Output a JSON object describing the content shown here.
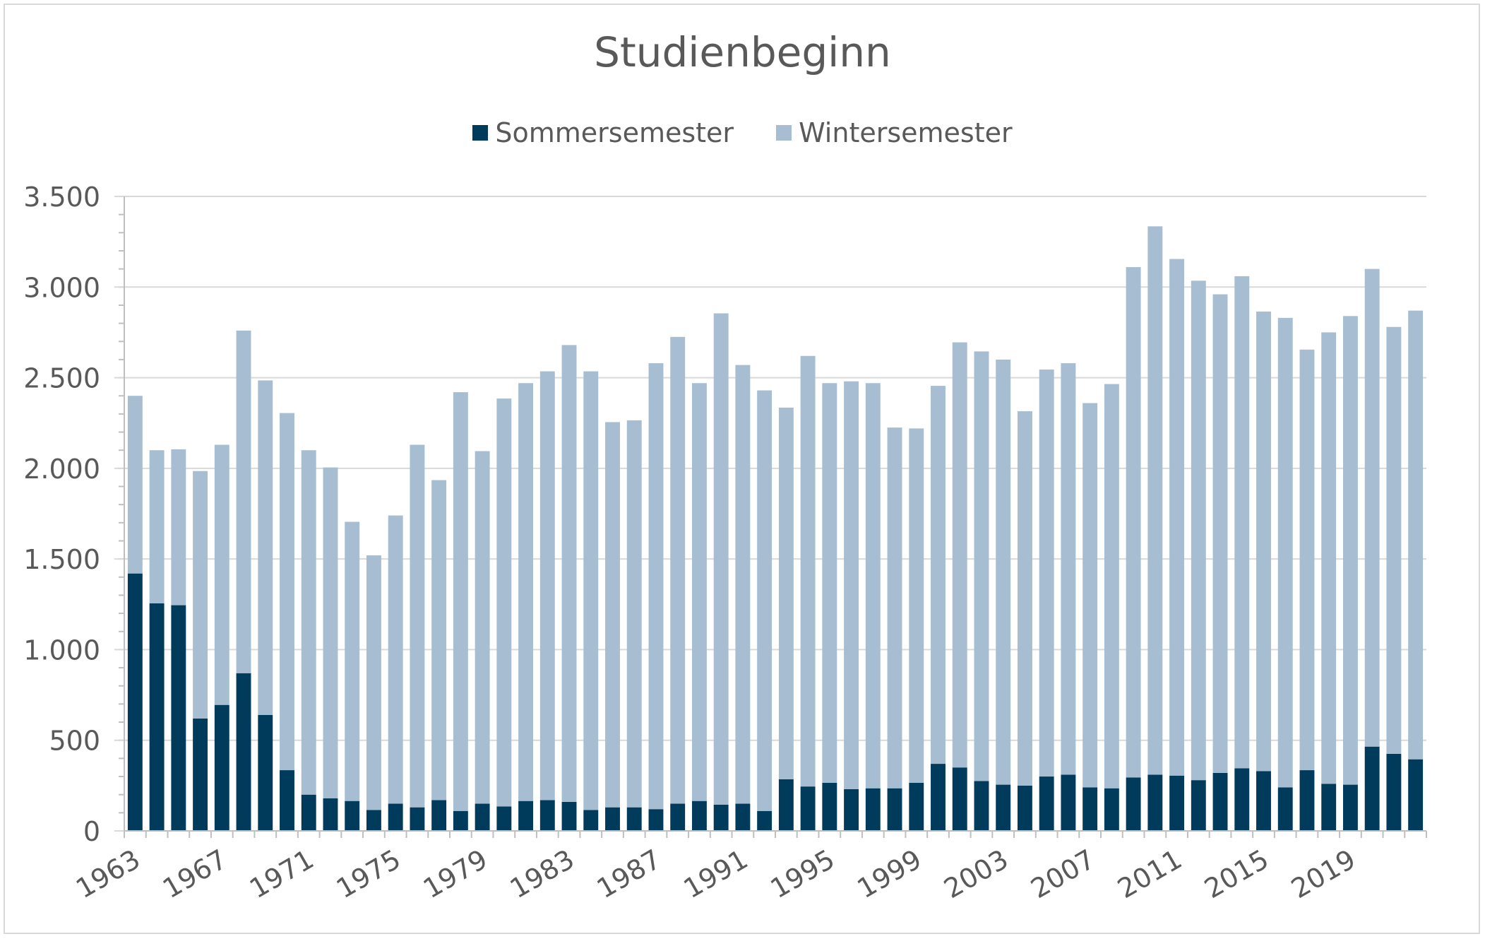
{
  "chart_data": {
    "type": "bar",
    "stacked": true,
    "title": "Studienbeginn",
    "xlabel": "",
    "ylabel": "",
    "ylim": [
      0,
      3500
    ],
    "yticks": [
      0,
      500,
      1000,
      1500,
      2000,
      2500,
      3000,
      3500
    ],
    "ytick_labels": [
      "0",
      "500",
      "1.000",
      "1.500",
      "2.000",
      "2.500",
      "3.000",
      "3.500"
    ],
    "grid": true,
    "legend_position": "top",
    "categories": [
      1963,
      1964,
      1965,
      1966,
      1967,
      1968,
      1969,
      1970,
      1971,
      1972,
      1973,
      1974,
      1975,
      1976,
      1977,
      1978,
      1979,
      1980,
      1981,
      1982,
      1983,
      1984,
      1985,
      1986,
      1987,
      1988,
      1989,
      1990,
      1991,
      1992,
      1993,
      1994,
      1995,
      1996,
      1997,
      1998,
      1999,
      2000,
      2001,
      2002,
      2003,
      2004,
      2005,
      2006,
      2007,
      2008,
      2009,
      2010,
      2011,
      2012,
      2013,
      2014,
      2015,
      2016,
      2017,
      2018,
      2019,
      2020,
      2021,
      2022
    ],
    "xtick_labels": [
      "1963",
      "1967",
      "1971",
      "1975",
      "1979",
      "1983",
      "1987",
      "1991",
      "1995",
      "1999",
      "2003",
      "2007",
      "2011",
      "2015",
      "2019"
    ],
    "series": [
      {
        "name": "Sommersemester",
        "color": "#003b5c",
        "values": [
          1420,
          1255,
          1245,
          620,
          695,
          870,
          640,
          335,
          200,
          180,
          165,
          115,
          150,
          130,
          170,
          110,
          150,
          135,
          165,
          170,
          160,
          115,
          130,
          130,
          120,
          150,
          165,
          145,
          150,
          110,
          285,
          245,
          265,
          230,
          235,
          235,
          265,
          370,
          350,
          275,
          255,
          250,
          300,
          310,
          240,
          235,
          295,
          310,
          305,
          280,
          320,
          345,
          330,
          240,
          335,
          260,
          255,
          465,
          425,
          395
        ]
      },
      {
        "name": "Wintersemester",
        "color": "#a6bdd2",
        "values": [
          980,
          845,
          860,
          1365,
          1435,
          1890,
          1845,
          1970,
          1900,
          1825,
          1540,
          1405,
          1590,
          2000,
          1765,
          2310,
          1945,
          2250,
          2305,
          2365,
          2520,
          2420,
          2125,
          2135,
          2460,
          2575,
          2305,
          2710,
          2420,
          2320,
          2050,
          2375,
          2205,
          2250,
          2235,
          1990,
          1955,
          2085,
          2345,
          2370,
          2345,
          2065,
          2245,
          2270,
          2120,
          2230,
          2815,
          3025,
          2850,
          2755,
          2640,
          2715,
          2535,
          2590,
          2320,
          2490,
          2585,
          2635,
          2355,
          2475
        ]
      }
    ]
  }
}
